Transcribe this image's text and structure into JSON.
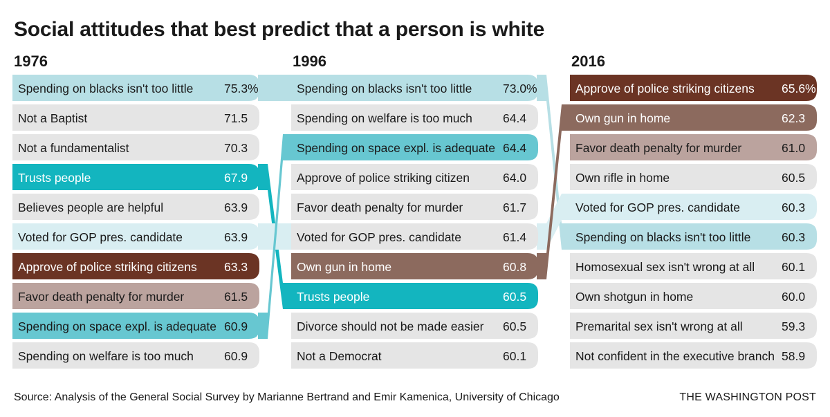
{
  "title": "Social attitudes that best predict that a person is white",
  "source": "Source: Analysis of the General Social Survey by Marianne Bertrand and Emir Kamenica, University of Chicago",
  "credit": "THE WASHINGTON POST",
  "colors": {
    "spending_blacks": "#b7dfe5",
    "trusts_people": "#13b5bf",
    "gop": "#d9eef2",
    "police": "#6b3424",
    "death_penalty": "#bba39e",
    "space": "#67c7d1",
    "gun_home": "#8c6a5e",
    "neutral": "#e5e5e5"
  },
  "chart_data": {
    "type": "table",
    "columns": [
      {
        "year": "1976",
        "rows": [
          {
            "label": "Spending on blacks isn't too little",
            "value": "75.3%",
            "key": "spending_blacks"
          },
          {
            "label": "Not a Baptist",
            "value": "71.5",
            "key": ""
          },
          {
            "label": "Not a fundamentalist",
            "value": "70.3",
            "key": ""
          },
          {
            "label": "Trusts people",
            "value": "67.9",
            "key": "trusts_people"
          },
          {
            "label": "Believes people are helpful",
            "value": "63.9",
            "key": ""
          },
          {
            "label": "Voted for GOP pres. candidate",
            "value": "63.9",
            "key": "gop"
          },
          {
            "label": "Approve of police striking citizens",
            "value": "63.3",
            "key": "police"
          },
          {
            "label": "Favor death penalty for murder",
            "value": "61.5",
            "key": "death_penalty"
          },
          {
            "label": "Spending on space expl. is adequate",
            "value": "60.9",
            "key": "space"
          },
          {
            "label": "Spending on welfare is too much",
            "value": "60.9",
            "key": ""
          }
        ]
      },
      {
        "year": "1996",
        "rows": [
          {
            "label": "Spending on blacks isn't too little",
            "value": "73.0%",
            "key": "spending_blacks"
          },
          {
            "label": "Spending on welfare is too much",
            "value": "64.4",
            "key": ""
          },
          {
            "label": "Spending on space expl. is adequate",
            "value": "64.4",
            "key": "space"
          },
          {
            "label": "Approve of police striking citizen",
            "value": "64.0",
            "key": ""
          },
          {
            "label": "Favor death penalty for murder",
            "value": "61.7",
            "key": ""
          },
          {
            "label": "Voted for GOP pres. candidate",
            "value": "61.4",
            "key": ""
          },
          {
            "label": "Own gun in home",
            "value": "60.8",
            "key": "gun_home"
          },
          {
            "label": "Trusts people",
            "value": "60.5",
            "key": "trusts_people"
          },
          {
            "label": "Divorce should not be made easier",
            "value": "60.5",
            "key": ""
          },
          {
            "label": "Not a Democrat",
            "value": "60.1",
            "key": ""
          }
        ]
      },
      {
        "year": "2016",
        "rows": [
          {
            "label": "Approve of police striking citizens",
            "value": "65.6%",
            "key": "police"
          },
          {
            "label": "Own gun in home",
            "value": "62.3",
            "key": "gun_home"
          },
          {
            "label": "Favor death penalty for murder",
            "value": "61.0",
            "key": "death_penalty"
          },
          {
            "label": "Own rifle in home",
            "value": "60.5",
            "key": ""
          },
          {
            "label": "Voted for GOP pres. candidate",
            "value": "60.3",
            "key": "gop"
          },
          {
            "label": "Spending on blacks isn't too little",
            "value": "60.3",
            "key": "spending_blacks"
          },
          {
            "label": "Homosexual sex isn't wrong at all",
            "value": "60.1",
            "key": ""
          },
          {
            "label": "Own shotgun in home",
            "value": "60.0",
            "key": ""
          },
          {
            "label": "Premarital sex isn't wrong at all",
            "value": "59.3",
            "key": ""
          },
          {
            "label": "Not confident in the executive branch",
            "value": "58.9",
            "key": ""
          }
        ]
      }
    ],
    "links": [
      {
        "key": "spending_blacks",
        "from": [
          0,
          0
        ],
        "to": [
          1,
          0
        ]
      },
      {
        "key": "spending_blacks",
        "from": [
          1,
          0
        ],
        "to": [
          2,
          5
        ]
      },
      {
        "key": "trusts_people",
        "from": [
          0,
          3
        ],
        "to": [
          1,
          7
        ]
      },
      {
        "key": "gop",
        "from": [
          0,
          5
        ],
        "to": [
          1,
          5
        ]
      },
      {
        "key": "gop",
        "from": [
          1,
          5
        ],
        "to": [
          2,
          4
        ]
      },
      {
        "key": "space",
        "from": [
          0,
          8
        ],
        "to": [
          1,
          2
        ]
      },
      {
        "key": "gun_home",
        "from": [
          1,
          6
        ],
        "to": [
          2,
          1
        ]
      }
    ]
  }
}
